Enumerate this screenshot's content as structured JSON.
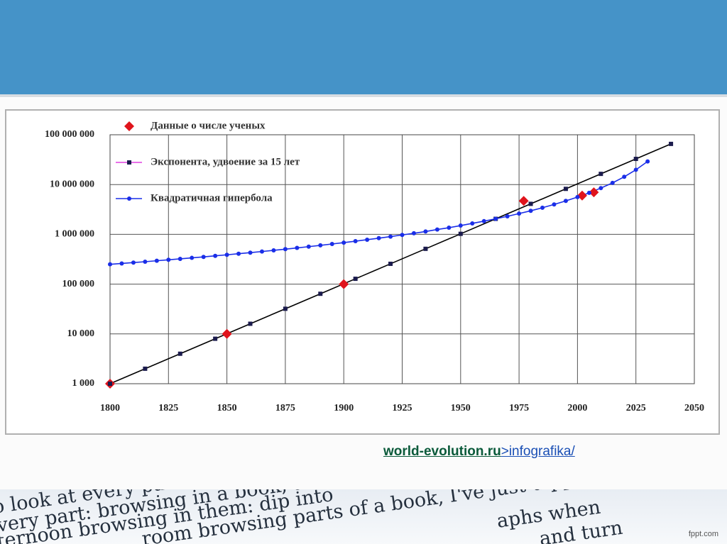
{
  "chart_data": {
    "type": "line",
    "xlim": [
      1800,
      2050
    ],
    "xticks": [
      1800,
      1825,
      1850,
      1875,
      1900,
      1925,
      1950,
      1975,
      2000,
      2025,
      2050
    ],
    "ylim": [
      1000,
      100000000
    ],
    "log_y": true,
    "yticks": [
      {
        "value": 1000,
        "label": "1 000"
      },
      {
        "value": 10000,
        "label": "10 000"
      },
      {
        "value": 100000,
        "label": "100 000"
      },
      {
        "value": 1000000,
        "label": "1 000 000"
      },
      {
        "value": 10000000,
        "label": "10 000 000"
      },
      {
        "value": 100000000,
        "label": "100 000 000"
      }
    ],
    "grid": true,
    "legend": "upper left",
    "series": [
      {
        "name": "Данные о числе ученых",
        "color": "#e0141c",
        "marker": "diamond",
        "line": false,
        "x": [
          1800,
          1850,
          1900,
          1977,
          2002,
          2007
        ],
        "values": [
          1000,
          10000,
          100000,
          4700000,
          6000000,
          7000000
        ]
      },
      {
        "name": "Экспонента, удвоение за 15 лет",
        "color": "#1b1b4d",
        "line_color": "#000000",
        "legend_line_color": "#e040e0",
        "marker": "square",
        "line": true,
        "x": [
          1800,
          1815,
          1830,
          1845,
          1860,
          1875,
          1890,
          1905,
          1920,
          1935,
          1950,
          1965,
          1980,
          1995,
          2010,
          2025,
          2040
        ],
        "values": [
          1000,
          2000,
          4000,
          8000,
          16000,
          32000,
          64000,
          128000,
          256000,
          512000,
          1024000,
          2048000,
          4096000,
          8192000,
          16384000,
          32768000,
          65536000
        ]
      },
      {
        "name": "Квадратичная гипербола",
        "color": "#1a2ee8",
        "line_color": "#1a2ee8",
        "marker": "circle",
        "line": true,
        "x": [
          1800,
          1805,
          1810,
          1815,
          1820,
          1825,
          1830,
          1835,
          1840,
          1845,
          1850,
          1855,
          1860,
          1865,
          1870,
          1875,
          1880,
          1885,
          1890,
          1895,
          1900,
          1905,
          1910,
          1915,
          1920,
          1925,
          1930,
          1935,
          1940,
          1945,
          1950,
          1955,
          1960,
          1965,
          1970,
          1975,
          1980,
          1985,
          1990,
          1995,
          2000,
          2005,
          2010,
          2015,
          2020,
          2025,
          2030
        ],
        "values": [
          250000,
          260000,
          271000,
          282000,
          295000,
          308000,
          322000,
          337000,
          352000,
          370000,
          388000,
          408000,
          429000,
          452000,
          477000,
          504000,
          534000,
          566000,
          601000,
          640000,
          682000,
          729000,
          780000,
          838000,
          901000,
          973000,
          1050000,
          1140000,
          1250000,
          1360000,
          1500000,
          1660000,
          1840000,
          2050000,
          2300000,
          2610000,
          2970000,
          3420000,
          3980000,
          4690000,
          5610000,
          6830000,
          8490000,
          10800000,
          14300000,
          19800000,
          29100000
        ]
      }
    ]
  },
  "source": {
    "site": "world-evolution.ru",
    "path": ">infografika/"
  },
  "photo_text": [
    "o look at every part: browsing",
    "every part: browsing in a book, article",
    "afternoon browsing in them: dip into",
    "room browsing parts of a book, I've just dipped",
    "aphs when",
    "and turn"
  ],
  "footer": "fppt.com"
}
